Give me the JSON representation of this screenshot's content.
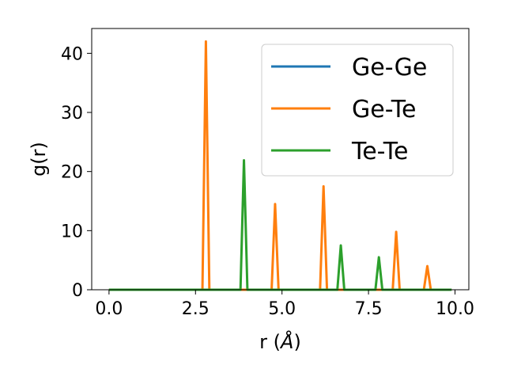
{
  "chart_data": {
    "type": "line",
    "title": "",
    "xlabel": "r (",
    "xlabel_unit": "Å",
    "xlabel_close": ")",
    "ylabel": "g(r)",
    "xlim": [
      -0.5,
      10.4
    ],
    "ylim": [
      0,
      44.2
    ],
    "xticks": [
      0.0,
      2.5,
      5.0,
      7.5,
      10.0
    ],
    "xtick_labels": [
      "0.0",
      "2.5",
      "5.0",
      "7.5",
      "10.0"
    ],
    "yticks": [
      0,
      10,
      20,
      30,
      40
    ],
    "ytick_labels": [
      "0",
      "10",
      "20",
      "30",
      "40"
    ],
    "grid": false,
    "legend_position": "top-right",
    "series": [
      {
        "name": "Ge-Ge",
        "color": "#1f77b4",
        "x": [
          0.0,
          9.9
        ],
        "y": [
          0,
          0
        ]
      },
      {
        "name": "Ge-Te",
        "color": "#ff7f0e",
        "x": [
          0.0,
          2.7,
          2.8,
          2.9,
          4.7,
          4.8,
          4.9,
          6.1,
          6.2,
          6.3,
          8.2,
          8.3,
          8.4,
          9.1,
          9.2,
          9.3,
          9.9
        ],
        "y": [
          0,
          0,
          42.0,
          0,
          0,
          14.5,
          0,
          0,
          17.5,
          0,
          0,
          9.8,
          0,
          0,
          4.0,
          0,
          0
        ]
      },
      {
        "name": "Te-Te",
        "color": "#2ca02c",
        "x": [
          0.0,
          3.8,
          3.9,
          4.0,
          6.6,
          6.7,
          6.8,
          7.7,
          7.8,
          7.9,
          9.9
        ],
        "y": [
          0,
          0,
          21.9,
          0,
          0,
          7.5,
          0,
          0,
          5.5,
          0,
          0
        ]
      }
    ]
  }
}
